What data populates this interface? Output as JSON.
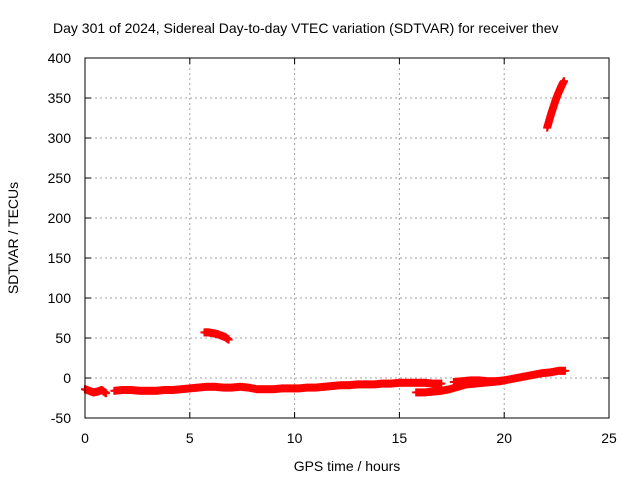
{
  "chart_data": {
    "type": "scatter",
    "title": "Day 301 of 2024, Sidereal Day-to-day VTEC variation (SDTVAR) for receiver thev",
    "xlabel": "GPS time / hours",
    "ylabel": "SDTVAR / TECUs",
    "xlim": [
      0,
      25
    ],
    "ylim": [
      -50,
      400
    ],
    "xticks": [
      0,
      5,
      10,
      15,
      20,
      25
    ],
    "yticks": [
      -50,
      0,
      50,
      100,
      150,
      200,
      250,
      300,
      350,
      400
    ],
    "grid": true,
    "legend": "none",
    "color": "#ff0000",
    "marker": "plus",
    "segments": [
      {
        "x": [
          0.0,
          0.2,
          0.4,
          0.6,
          0.8,
          1.0
        ],
        "y": [
          -14,
          -16,
          -18,
          -17,
          -15,
          -19
        ]
      },
      {
        "x": [
          1.4,
          1.8,
          2.2,
          2.6,
          3.0,
          3.4,
          3.8,
          4.2,
          4.6,
          5.0,
          5.4,
          5.8,
          6.2,
          6.6,
          7.0,
          7.4,
          7.8,
          8.2,
          8.6,
          9.0,
          9.4,
          9.8,
          10.2,
          10.6,
          11.0,
          11.4,
          11.8,
          12.2,
          12.6,
          13.0,
          13.4,
          13.8,
          14.2,
          14.6,
          15.0,
          15.4,
          15.8,
          16.2,
          16.6,
          17.0
        ],
        "y": [
          -16,
          -15,
          -15,
          -16,
          -16,
          -16,
          -15,
          -15,
          -14,
          -13,
          -12,
          -11,
          -11,
          -12,
          -12,
          -11,
          -12,
          -14,
          -14,
          -14,
          -13,
          -13,
          -13,
          -12,
          -12,
          -11,
          -10,
          -9,
          -9,
          -8,
          -8,
          -8,
          -7,
          -7,
          -6,
          -6,
          -6,
          -6,
          -7,
          -7
        ]
      },
      {
        "x": [
          15.8,
          16.2,
          16.6,
          17.0,
          17.4,
          17.8,
          18.2,
          18.6,
          19.0,
          19.4,
          19.8,
          20.2,
          20.6,
          21.0,
          21.4,
          21.8,
          22.2,
          22.6,
          22.9
        ],
        "y": [
          -18,
          -18,
          -17,
          -16,
          -14,
          -11,
          -8,
          -7,
          -6,
          -5,
          -4,
          -2,
          0,
          2,
          4,
          6,
          7,
          9,
          9
        ]
      },
      {
        "x": [
          17.6,
          18.0,
          18.4,
          18.8,
          19.2,
          19.6,
          20.0
        ],
        "y": [
          -5,
          -4,
          -3,
          -3,
          -4,
          -4,
          -3
        ]
      },
      {
        "x": [
          5.7,
          5.9,
          6.1,
          6.3,
          6.5,
          6.7,
          6.85
        ],
        "y": [
          57,
          57,
          56,
          55,
          53,
          51,
          48
        ]
      },
      {
        "x": [
          22.05,
          22.15,
          22.25,
          22.35,
          22.45,
          22.55,
          22.65,
          22.75,
          22.85
        ],
        "y": [
          313,
          322,
          331,
          339,
          347,
          354,
          360,
          366,
          371
        ]
      }
    ]
  }
}
